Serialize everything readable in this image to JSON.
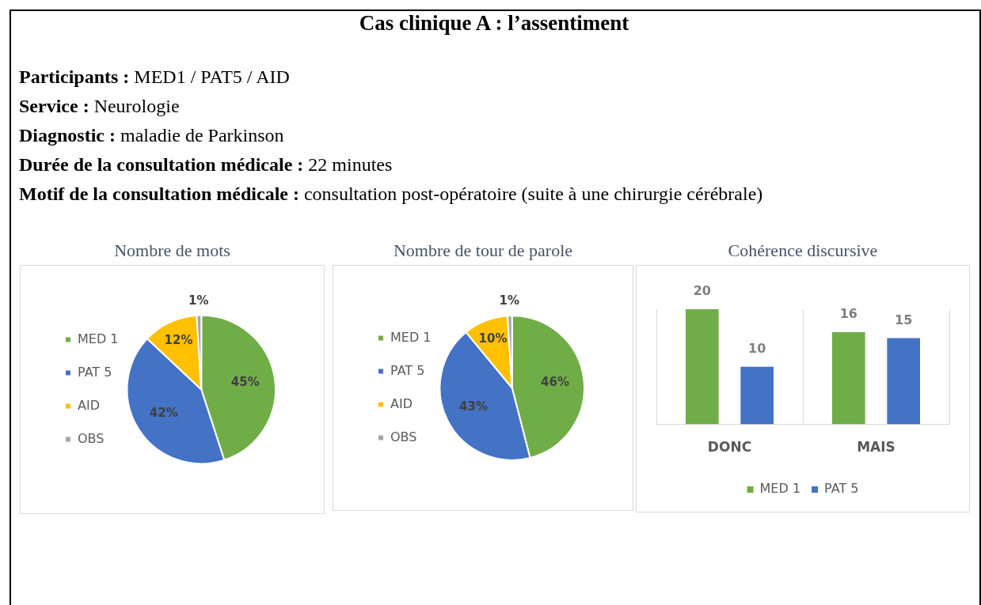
{
  "chart_data": [
    {
      "type": "other",
      "title": "Cas clinique A : l’assentiment",
      "annotations": [
        "Participants : MED1 / PAT5 / AID",
        "Service : Neurologie",
        "Diagnostic : maladie de Parkinson",
        "Durée de la consultation médicale : 22 minutes",
        "Motif de la consultation médicale : consultation post-opératoire (suite à une chirurgie cérébrale)"
      ]
    },
    {
      "type": "pie",
      "title": "Nombre de mots",
      "categories": [
        "MED 1",
        "PAT 5",
        "AID",
        "OBS"
      ],
      "values": [
        45,
        42,
        12,
        1
      ],
      "colors": [
        "#70ad47",
        "#4472c4",
        "#ffc000",
        "#a5a5a5"
      ],
      "value_labels": [
        "45%",
        "42%",
        "12%",
        "1%"
      ],
      "legend": "left"
    },
    {
      "type": "pie",
      "title": "Nombre de tour de parole",
      "categories": [
        "MED 1",
        "PAT 5",
        "AID",
        "OBS"
      ],
      "values": [
        46,
        43,
        10,
        1
      ],
      "colors": [
        "#70ad47",
        "#4472c4",
        "#ffc000",
        "#a5a5a5"
      ],
      "value_labels": [
        "46%",
        "43%",
        "10%",
        "1%"
      ],
      "legend": "left"
    },
    {
      "type": "bar",
      "title": "Cohérence discursive",
      "categories": [
        "DONC",
        "MAIS"
      ],
      "series": [
        {
          "name": "MED 1",
          "color": "#70ad47",
          "values": [
            20,
            16
          ]
        },
        {
          "name": "PAT 5",
          "color": "#4472c4",
          "values": [
            10,
            15
          ]
        }
      ],
      "data_labels": true,
      "legend": "bottom",
      "grid": "x"
    }
  ]
}
